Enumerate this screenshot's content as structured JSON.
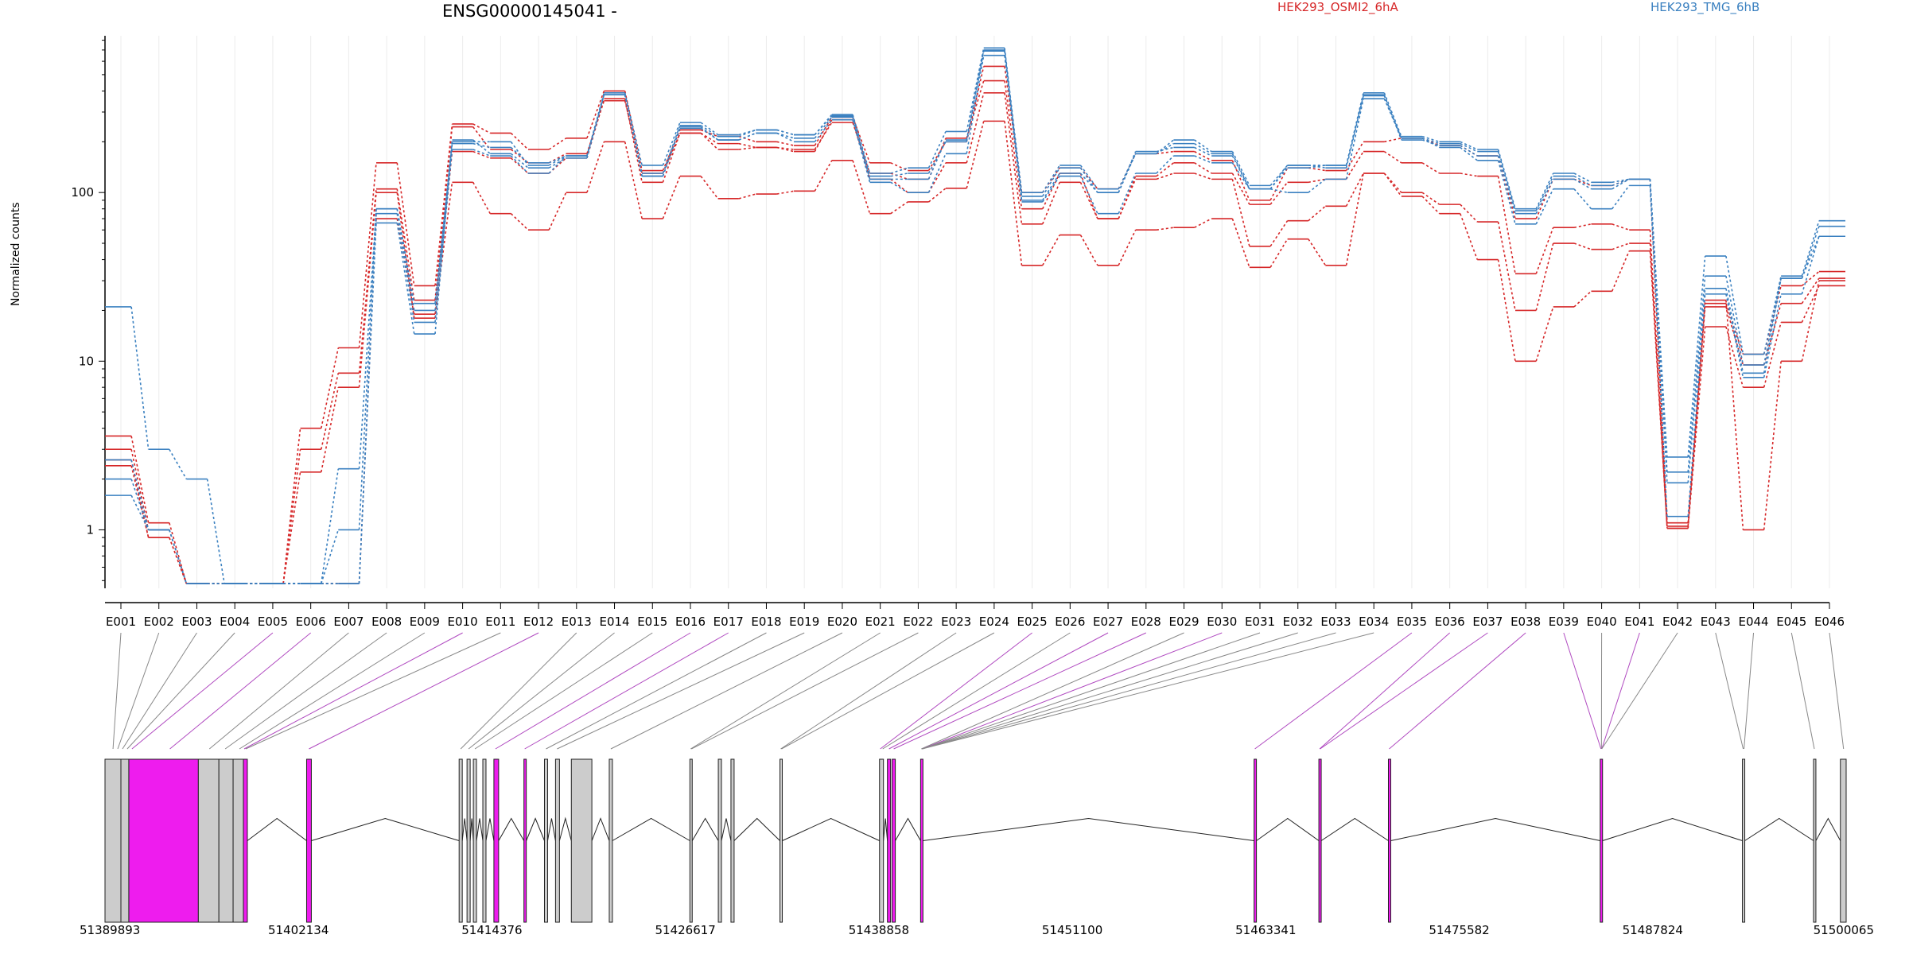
{
  "title": "ENSG00000145041 -",
  "legend": [
    {
      "label": "HEK293_OSMI2_6hA",
      "color": "#d62728"
    },
    {
      "label": "HEK293_TMG_6hB",
      "color": "#3a80c0"
    }
  ],
  "colors": {
    "exon_highlight": "#ee1cee",
    "exon_plain": "#cccccc",
    "link_highlight": "#b04ac0",
    "link_plain": "#888888"
  },
  "chart_data": {
    "type": "line",
    "title": "ENSG00000145041 -",
    "ylabel": "Normalized counts",
    "yscale": "log",
    "ylim": [
      0.45,
      850
    ],
    "yticks": [
      1,
      10,
      100
    ],
    "grid": "vertical",
    "legend_position": "top",
    "categories": [
      "E001",
      "E002",
      "E003",
      "E004",
      "E005",
      "E006",
      "E007",
      "E008",
      "E009",
      "E010",
      "E011",
      "E012",
      "E013",
      "E014",
      "E015",
      "E016",
      "E017",
      "E018",
      "E019",
      "E020",
      "E021",
      "E022",
      "E023",
      "E024",
      "E025",
      "E026",
      "E027",
      "E028",
      "E029",
      "E030",
      "E031",
      "E032",
      "E033",
      "E034",
      "E035",
      "E036",
      "E037",
      "E038",
      "E039",
      "E040",
      "E041",
      "E042",
      "E043",
      "E044",
      "E045",
      "E046"
    ],
    "series": [
      {
        "group": 0,
        "values": [
          3.6,
          1.1,
          0.48,
          0.48,
          0.48,
          4.0,
          12,
          150,
          28,
          255,
          225,
          180,
          210,
          400,
          135,
          235,
          215,
          200,
          190,
          280,
          150,
          135,
          200,
          560,
          100,
          140,
          105,
          170,
          175,
          155,
          90,
          140,
          135,
          200,
          210,
          190,
          165,
          70,
          120,
          110,
          120,
          1.1,
          22,
          11,
          28,
          34
        ]
      },
      {
        "group": 0,
        "values": [
          3.0,
          1.0,
          0.48,
          0.48,
          0.48,
          3.0,
          8.5,
          105,
          23,
          245,
          180,
          150,
          170,
          350,
          130,
          225,
          195,
          185,
          180,
          260,
          130,
          120,
          210,
          460,
          80,
          130,
          70,
          125,
          150,
          130,
          85,
          115,
          120,
          175,
          150,
          130,
          125,
          33,
          62,
          65,
          60,
          1.05,
          21,
          9.5,
          22,
          31
        ]
      },
      {
        "group": 0,
        "values": [
          2.6,
          0.9,
          0.48,
          0.48,
          0.48,
          2.2,
          7.0,
          100,
          18,
          175,
          160,
          130,
          160,
          360,
          115,
          225,
          180,
          185,
          175,
          270,
          120,
          100,
          150,
          390,
          65,
          115,
          70,
          120,
          130,
          120,
          48,
          68,
          83,
          130,
          100,
          85,
          67,
          20,
          50,
          46,
          50,
          1.02,
          16,
          7,
          17,
          28
        ]
      },
      {
        "group": 0,
        "values": [
          2.4,
          0.9,
          0.48,
          0.48,
          0.48,
          0.48,
          0.48,
          70,
          19,
          115,
          75,
          60,
          100,
          200,
          70,
          125,
          92,
          98,
          102,
          155,
          75,
          88,
          106,
          265,
          37,
          56,
          37,
          60,
          62,
          70,
          36,
          53,
          37,
          130,
          95,
          75,
          40,
          10,
          21,
          26,
          45,
          1.02,
          23,
          1.0,
          10,
          30
        ]
      },
      {
        "group": 1,
        "values": [
          21,
          3.0,
          2.0,
          0.48,
          0.48,
          0.48,
          2.3,
          80,
          20,
          200,
          200,
          145,
          165,
          390,
          145,
          260,
          220,
          235,
          220,
          290,
          130,
          140,
          230,
          720,
          100,
          145,
          105,
          170,
          205,
          175,
          110,
          145,
          145,
          390,
          215,
          200,
          180,
          80,
          130,
          115,
          120,
          2.7,
          42,
          11,
          32,
          68
        ]
      },
      {
        "group": 1,
        "values": [
          2.6,
          1.0,
          0.48,
          0.48,
          0.48,
          0.48,
          1.0,
          80,
          22,
          195,
          185,
          150,
          165,
          380,
          130,
          250,
          215,
          235,
          220,
          285,
          125,
          130,
          200,
          690,
          95,
          140,
          100,
          170,
          195,
          170,
          105,
          145,
          140,
          375,
          210,
          195,
          175,
          78,
          125,
          110,
          120,
          2.2,
          32,
          9.5,
          31,
          63
        ]
      },
      {
        "group": 1,
        "values": [
          1.6,
          1.0,
          0.48,
          0.48,
          0.48,
          0.48,
          0.48,
          66,
          14.5,
          205,
          170,
          140,
          160,
          380,
          125,
          245,
          205,
          225,
          210,
          280,
          120,
          120,
          205,
          700,
          90,
          130,
          100,
          175,
          185,
          165,
          105,
          140,
          145,
          380,
          205,
          190,
          165,
          75,
          120,
          105,
          120,
          1.9,
          27,
          8.5,
          31,
          55
        ]
      },
      {
        "group": 1,
        "values": [
          2.0,
          1.0,
          0.48,
          0.48,
          0.48,
          0.48,
          0.48,
          75,
          17,
          180,
          165,
          130,
          165,
          380,
          125,
          240,
          205,
          225,
          200,
          270,
          115,
          100,
          170,
          650,
          88,
          125,
          75,
          130,
          165,
          150,
          105,
          100,
          120,
          360,
          210,
          185,
          155,
          65,
          105,
          80,
          110,
          1.2,
          25,
          8.0,
          25,
          55
        ]
      }
    ]
  },
  "gene_model": {
    "axis_ticks": [
      "51389893",
      "51402134",
      "51414376",
      "51426617",
      "51438858",
      "51451100",
      "51463341",
      "51475582",
      "51487824",
      "51500065"
    ],
    "genome_start": 51389893,
    "genome_end": 51500065,
    "exons": [
      {
        "id": "E001",
        "start": 51389893,
        "end": 51390900,
        "highlight": false
      },
      {
        "id": "E002",
        "start": 51390900,
        "end": 51391400,
        "highlight": false
      },
      {
        "id": "E003",
        "start": 51391400,
        "end": 51395800,
        "highlight": true
      },
      {
        "id": "E004",
        "start": 51395800,
        "end": 51397100,
        "highlight": false
      },
      {
        "id": "E005",
        "start": 51397100,
        "end": 51398000,
        "highlight": false
      },
      {
        "id": "E006",
        "start": 51398000,
        "end": 51398650,
        "highlight": false
      },
      {
        "id": "E007",
        "start": 51398650,
        "end": 51398900,
        "highlight": true
      },
      {
        "id": "E008",
        "start": 51402650,
        "end": 51402950,
        "highlight": true
      },
      {
        "id": "E009",
        "start": 51412300,
        "end": 51412500,
        "highlight": false
      },
      {
        "id": "E010",
        "start": 51412800,
        "end": 51413000,
        "highlight": false
      },
      {
        "id": "E011",
        "start": 51413200,
        "end": 51413400,
        "highlight": false
      },
      {
        "id": "E012",
        "start": 51413800,
        "end": 51414000,
        "highlight": false
      },
      {
        "id": "E013",
        "start": 51414500,
        "end": 51414800,
        "highlight": true
      },
      {
        "id": "E014",
        "start": 51416400,
        "end": 51416550,
        "highlight": true
      },
      {
        "id": "E015",
        "start": 51417700,
        "end": 51417900,
        "highlight": false
      },
      {
        "id": "E016",
        "start": 51418400,
        "end": 51418650,
        "highlight": false
      },
      {
        "id": "E017",
        "start": 51419400,
        "end": 51420700,
        "highlight": false
      },
      {
        "id": "E018",
        "start": 51421800,
        "end": 51422000,
        "highlight": false
      },
      {
        "id": "E019",
        "start": 51426900,
        "end": 51427050,
        "highlight": false
      },
      {
        "id": "E020",
        "start": 51428700,
        "end": 51428900,
        "highlight": false
      },
      {
        "id": "E021",
        "start": 51429500,
        "end": 51429700,
        "highlight": false
      },
      {
        "id": "E022",
        "start": 51432600,
        "end": 51432750,
        "highlight": false
      },
      {
        "id": "E023",
        "start": 51438900,
        "end": 51439150,
        "highlight": false
      },
      {
        "id": "E024",
        "start": 51439400,
        "end": 51439600,
        "highlight": true
      },
      {
        "id": "E025",
        "start": 51439700,
        "end": 51439900,
        "highlight": true
      },
      {
        "id": "E026",
        "start": 51441500,
        "end": 51441650,
        "highlight": true
      },
      {
        "id": "E027",
        "start": 51462600,
        "end": 51462750,
        "highlight": true
      },
      {
        "id": "E028",
        "start": 51466700,
        "end": 51466850,
        "highlight": true
      },
      {
        "id": "E029",
        "start": 51471100,
        "end": 51471250,
        "highlight": true
      },
      {
        "id": "E030",
        "start": 51484500,
        "end": 51484650,
        "highlight": true
      },
      {
        "id": "E031",
        "start": 51493500,
        "end": 51493650,
        "highlight": false
      },
      {
        "id": "E032",
        "start": 51498000,
        "end": 51498150,
        "highlight": false
      },
      {
        "id": "E033",
        "start": 51499700,
        "end": 51500065,
        "highlight": false
      }
    ],
    "links": [
      {
        "from": "E001",
        "to": 51390400,
        "highlight": false
      },
      {
        "from": "E002",
        "to": 51390700,
        "highlight": false
      },
      {
        "from": "E003",
        "to": 51391000,
        "highlight": false
      },
      {
        "from": "E004",
        "to": 51391300,
        "highlight": false
      },
      {
        "from": "E005",
        "to": 51391600,
        "highlight": true
      },
      {
        "from": "E006",
        "to": 51394000,
        "highlight": true
      },
      {
        "from": "E007",
        "to": 51396500,
        "highlight": false
      },
      {
        "from": "E008",
        "to": 51397500,
        "highlight": false
      },
      {
        "from": "E009",
        "to": 51398400,
        "highlight": false
      },
      {
        "from": "E010",
        "to": 51398700,
        "highlight": true
      },
      {
        "from": "E011",
        "to": 51398800,
        "highlight": false
      },
      {
        "from": "E012",
        "to": 51402800,
        "highlight": true
      },
      {
        "from": "E013",
        "to": 51412400,
        "highlight": false
      },
      {
        "from": "E014",
        "to": 51412900,
        "highlight": false
      },
      {
        "from": "E015",
        "to": 51413300,
        "highlight": false
      },
      {
        "from": "E016",
        "to": 51414600,
        "highlight": true
      },
      {
        "from": "E017",
        "to": 51416450,
        "highlight": true
      },
      {
        "from": "E018",
        "to": 51417800,
        "highlight": false
      },
      {
        "from": "E019",
        "to": 51418500,
        "highlight": false
      },
      {
        "from": "E020",
        "to": 51421900,
        "highlight": false
      },
      {
        "from": "E021",
        "to": 51426950,
        "highlight": false
      },
      {
        "from": "E022",
        "to": 51427000,
        "highlight": false
      },
      {
        "from": "E023",
        "to": 51432650,
        "highlight": false
      },
      {
        "from": "E024",
        "to": 51432700,
        "highlight": false
      },
      {
        "from": "E025",
        "to": 51438950,
        "highlight": true
      },
      {
        "from": "E026",
        "to": 51439100,
        "highlight": false
      },
      {
        "from": "E027",
        "to": 51439500,
        "highlight": true
      },
      {
        "from": "E028",
        "to": 51439800,
        "highlight": true
      },
      {
        "from": "E029",
        "to": 51441550,
        "highlight": false
      },
      {
        "from": "E030",
        "to": 51441600,
        "highlight": true
      },
      {
        "from": "E031",
        "to": 51441600,
        "highlight": false
      },
      {
        "from": "E032",
        "to": 51441600,
        "highlight": false
      },
      {
        "from": "E033",
        "to": 51441600,
        "highlight": false
      },
      {
        "from": "E034",
        "to": 51441600,
        "highlight": false
      },
      {
        "from": "E035",
        "to": 51462650,
        "highlight": true
      },
      {
        "from": "E036",
        "to": 51466750,
        "highlight": true
      },
      {
        "from": "E037",
        "to": 51466780,
        "highlight": true
      },
      {
        "from": "E038",
        "to": 51471150,
        "highlight": true
      },
      {
        "from": "E039",
        "to": 51484550,
        "highlight": true
      },
      {
        "from": "E040",
        "to": 51484580,
        "highlight": false
      },
      {
        "from": "E041",
        "to": 51484600,
        "highlight": true
      },
      {
        "from": "E042",
        "to": 51484600,
        "highlight": false
      },
      {
        "from": "E043",
        "to": 51493550,
        "highlight": false
      },
      {
        "from": "E044",
        "to": 51493600,
        "highlight": false
      },
      {
        "from": "E045",
        "to": 51498050,
        "highlight": false
      },
      {
        "from": "E046",
        "to": 51499900,
        "highlight": false
      }
    ]
  }
}
